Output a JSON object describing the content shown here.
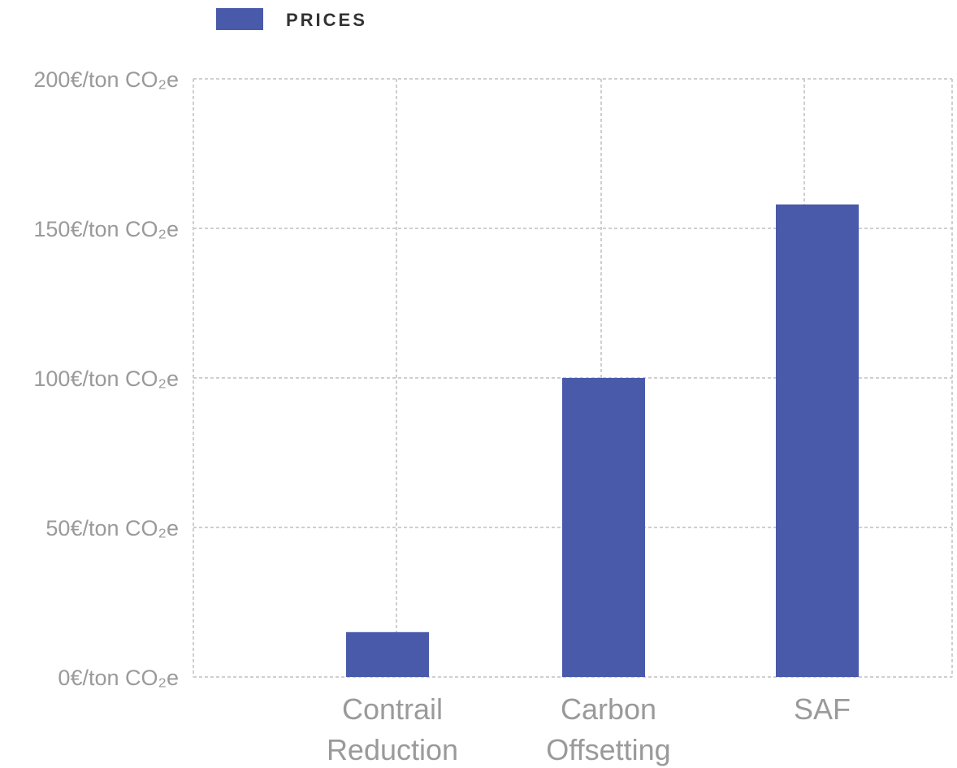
{
  "chart_data": {
    "type": "bar",
    "categories": [
      "Contrail Reduction",
      "Carbon Offsetting",
      "SAF"
    ],
    "series": [
      {
        "name": "PRICES",
        "values": [
          15,
          100,
          158
        ]
      }
    ],
    "ylim": [
      0,
      200
    ],
    "yticks": [
      0,
      50,
      100,
      150,
      200
    ],
    "ytick_labels": [
      "0€/ton CO₂e",
      "50€/ton CO₂e",
      "100€/ton CO₂e",
      "150€/ton CO₂e",
      "200€/ton CO₂e"
    ],
    "legend_position": "top-left",
    "grid": true,
    "bar_color": "#4a5aab"
  }
}
